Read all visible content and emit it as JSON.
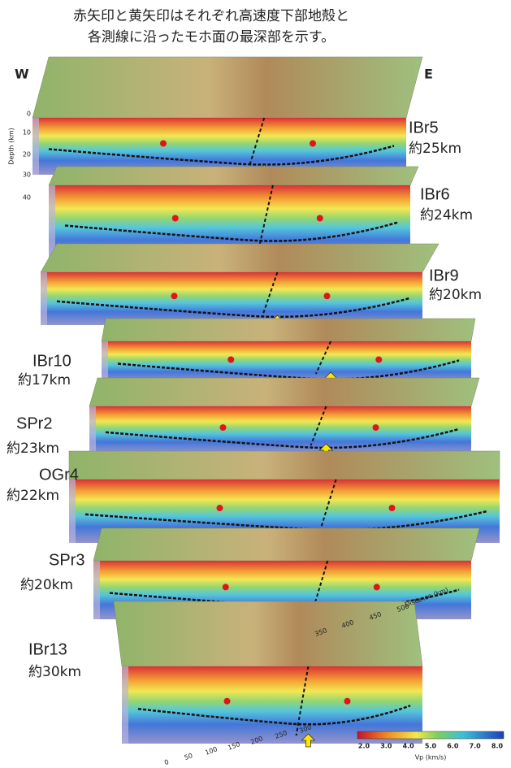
{
  "caption": [
    "赤矢印と黄矢印はそれぞれ高速度下部地殻と",
    "各測線に沿ったモホ面の最深部を示す。"
  ],
  "directions": {
    "west": "W",
    "east": "E"
  },
  "profiles": [
    {
      "name": "IBr5",
      "depth": "約25km"
    },
    {
      "name": "IBr6",
      "depth": "約24km"
    },
    {
      "name": "IBr9",
      "depth": "約20km"
    },
    {
      "name": "IBr10",
      "depth": "約17km"
    },
    {
      "name": "SPr2",
      "depth": "約23km"
    },
    {
      "name": "OGr4",
      "depth": "約22km"
    },
    {
      "name": "SPr3",
      "depth": "約20km"
    },
    {
      "name": "IBr13",
      "depth": "約30km"
    }
  ],
  "depth_axis": {
    "label": "Depth (km)",
    "ticks": [
      "0",
      "10",
      "20",
      "30",
      "40"
    ]
  },
  "distance_axis": {
    "label": "Distance (km)",
    "ticks": [
      "0",
      "50",
      "100",
      "150",
      "200",
      "250",
      "300",
      "350",
      "400",
      "450",
      "500"
    ]
  },
  "colorbar": {
    "label": "Vp (km/s)",
    "ticks": [
      "2.0",
      "3.0",
      "4.0",
      "5.0",
      "6.0",
      "7.0",
      "8.0"
    ]
  }
}
